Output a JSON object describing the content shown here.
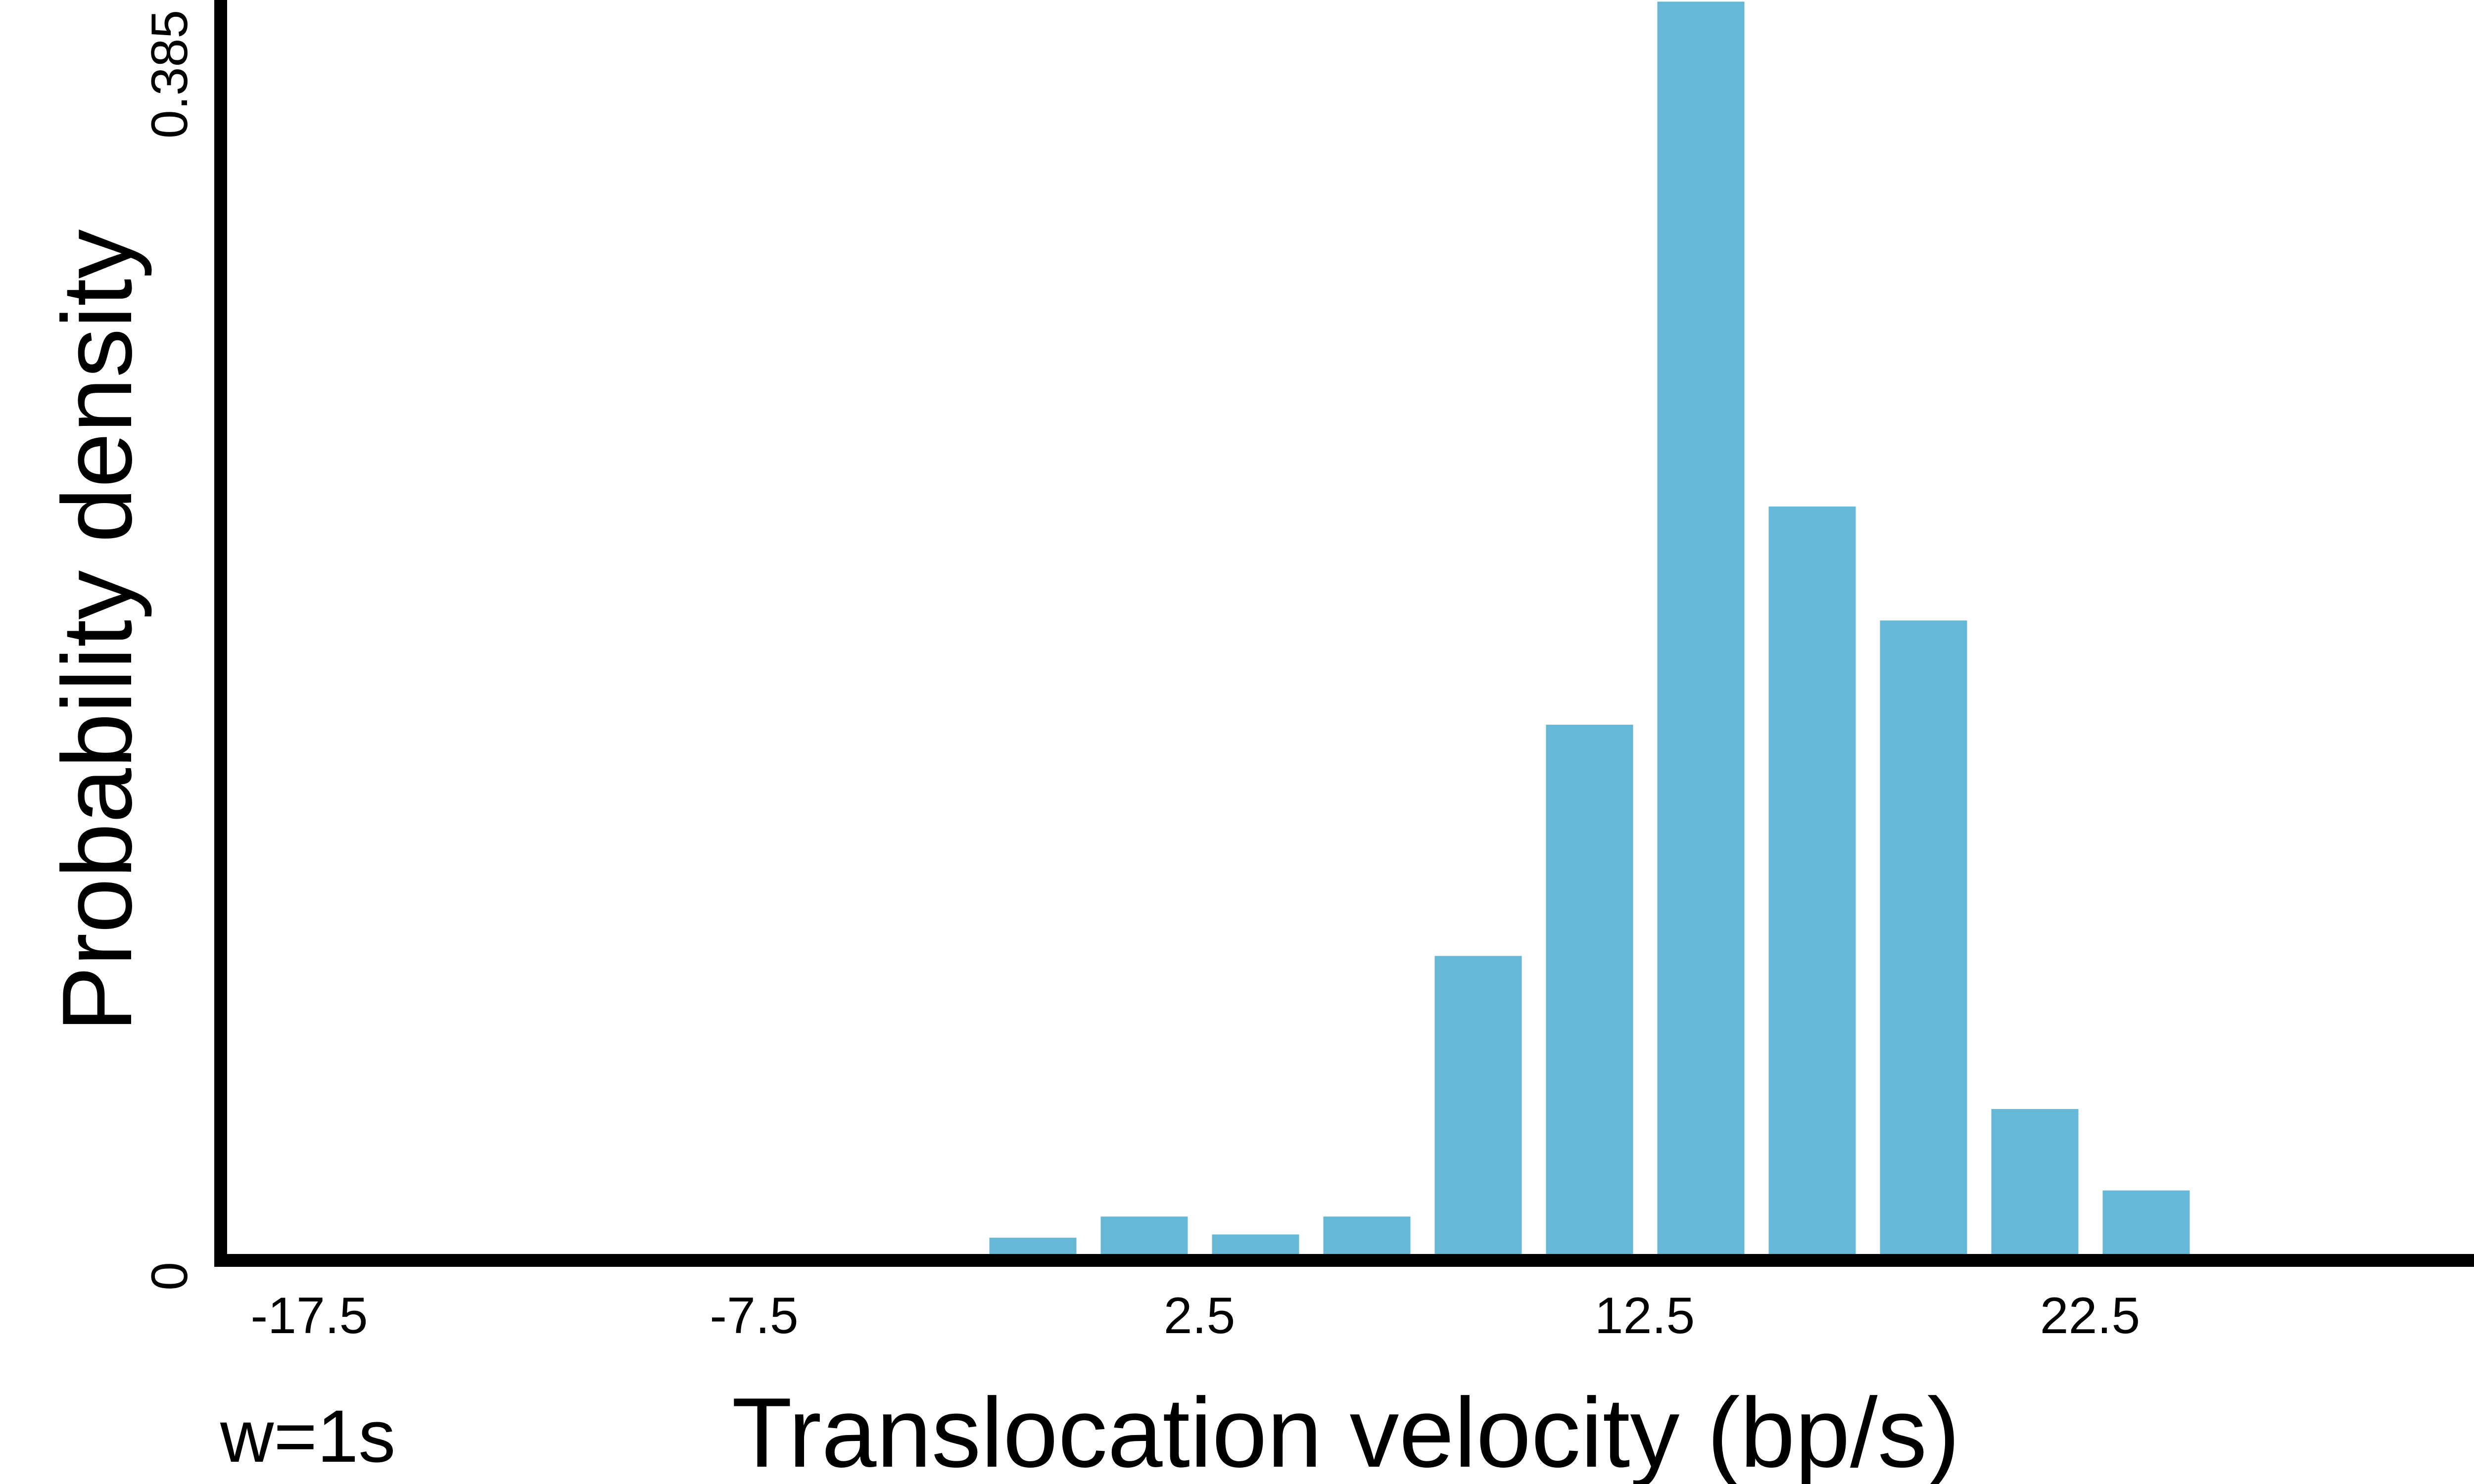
{
  "chart_data": {
    "type": "bar",
    "title": "",
    "xlabel": "Translocation velocity (bp/s)",
    "ylabel": "Probability density",
    "x_tick_labels": [
      "-17.5",
      "-7.5",
      "2.5",
      "12.5",
      "22.5"
    ],
    "x_ticks": [
      -17.5,
      -7.5,
      2.5,
      12.5,
      22.5
    ],
    "y_tick_labels": [
      "0",
      "0.385"
    ],
    "y_ticks": [
      0,
      0.385
    ],
    "xlim": [
      -17.5,
      31.5
    ],
    "ylim": [
      0,
      0.385
    ],
    "bin_width": 2.5,
    "bin_centers": [
      -1.25,
      1.25,
      3.75,
      6.25,
      8.75,
      11.25,
      13.75,
      16.25,
      18.75,
      21.25,
      23.75
    ],
    "values": [
      0.005,
      0.0115,
      0.006,
      0.0115,
      0.0915,
      0.1625,
      0.3845,
      0.2295,
      0.1945,
      0.0445,
      0.0195
    ],
    "bar_color": "#67b8d6",
    "grid": false,
    "legend": "none",
    "annotation": "w=1s"
  }
}
